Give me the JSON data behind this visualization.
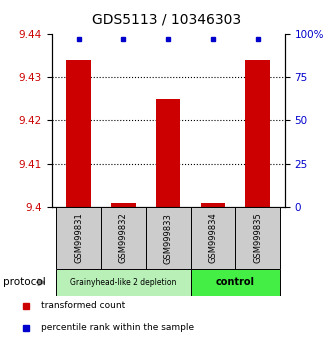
{
  "title": "GDS5113 / 10346303",
  "samples": [
    "GSM999831",
    "GSM999832",
    "GSM999833",
    "GSM999834",
    "GSM999835"
  ],
  "red_values": [
    9.434,
    9.401,
    9.425,
    9.401,
    9.434
  ],
  "blue_values": [
    97,
    97,
    97,
    97,
    97
  ],
  "ylim_left": [
    9.4,
    9.44
  ],
  "ylim_right": [
    0,
    100
  ],
  "yticks_left": [
    9.4,
    9.41,
    9.42,
    9.43,
    9.44
  ],
  "yticks_right": [
    0,
    25,
    50,
    75,
    100
  ],
  "groups": [
    {
      "label": "Grainyhead-like 2 depletion",
      "samples": [
        0,
        1,
        2
      ],
      "color": "#b8f0b8"
    },
    {
      "label": "control",
      "samples": [
        3,
        4
      ],
      "color": "#44ee44"
    }
  ],
  "sample_box_color": "#cccccc",
  "bar_width": 0.55,
  "red_color": "#cc0000",
  "blue_color": "#0000cc",
  "grid_color": "#000000",
  "legend_red_label": "transformed count",
  "legend_blue_label": "percentile rank within the sample",
  "protocol_label": "protocol",
  "arrow_color": "#888888",
  "title_fontsize": 10,
  "tick_fontsize": 7.5,
  "sample_fontsize": 6,
  "group_fontsize_0": 5.5,
  "group_fontsize_1": 7,
  "legend_fontsize": 6.5
}
